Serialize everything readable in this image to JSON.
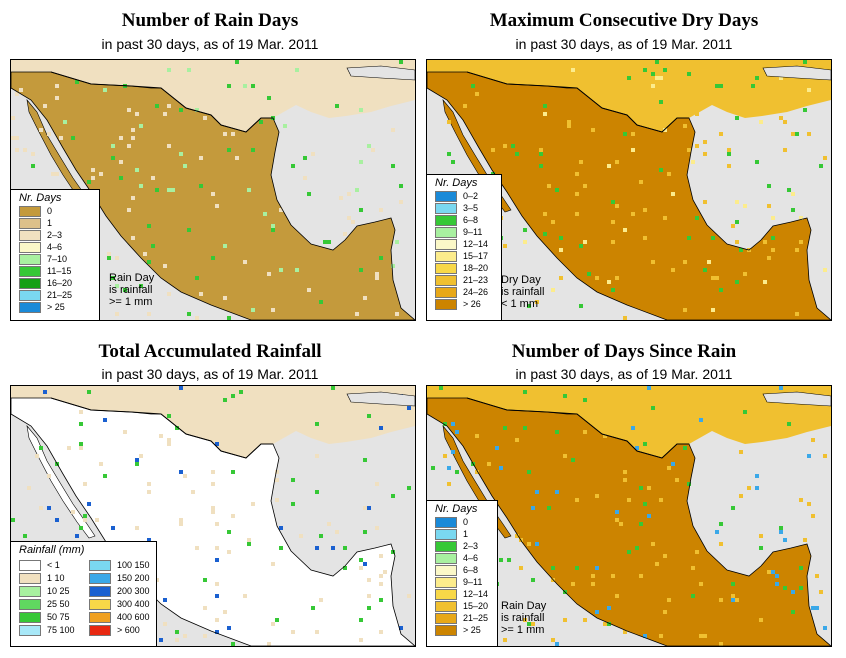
{
  "panels": [
    {
      "title": "Number of Rain Days",
      "subtitle": "in past 30 days, as of  19 Mar. 2011",
      "legend_title": "Nr. Days",
      "legend_items": [
        {
          "label": "0",
          "color": "#c49a3c"
        },
        {
          "label": "1",
          "color": "#dcc08a"
        },
        {
          "label": "2–3",
          "color": "#f0e0c0"
        },
        {
          "label": "4–6",
          "color": "#fbf8c8"
        },
        {
          "label": "7–10",
          "color": "#a8f0a0"
        },
        {
          "label": "11–15",
          "color": "#36c836"
        },
        {
          "label": "16–20",
          "color": "#14a014"
        },
        {
          "label": "21–25",
          "color": "#7ad8f0"
        },
        {
          "label": "> 25",
          "color": "#1a8ad8"
        }
      ],
      "note": [
        "Rain Day",
        "is rainfall",
        ">= 1 mm"
      ],
      "colors": {
        "land": "#c49a3c",
        "secondary": "#f0e0c0",
        "spot": "#36c836",
        "extra": "#a8f0a0"
      }
    },
    {
      "title": "Maximum Consecutive Dry Days",
      "subtitle": "in past 30 days, as of  19 Mar. 2011",
      "legend_title": "Nr. Days",
      "legend_items": [
        {
          "label": "0–2",
          "color": "#1a8ad8"
        },
        {
          "label": "3–5",
          "color": "#7ad8f0"
        },
        {
          "label": "6–8",
          "color": "#36c836"
        },
        {
          "label": "9–11",
          "color": "#a8f0a0"
        },
        {
          "label": "12–14",
          "color": "#fbf8c8"
        },
        {
          "label": "15–17",
          "color": "#fcec8c"
        },
        {
          "label": "18–20",
          "color": "#f8d848"
        },
        {
          "label": "21–23",
          "color": "#f0c030"
        },
        {
          "label": "24–26",
          "color": "#e8a818"
        },
        {
          "label": "> 26",
          "color": "#cc8400"
        }
      ],
      "note": [
        "Dry Day",
        "is rainfall",
        "< 1 mm"
      ],
      "colors": {
        "land": "#cc8400",
        "secondary": "#f0c030",
        "spot": "#36c836",
        "extra": "#fcec8c"
      }
    },
    {
      "title": "Total Accumulated Rainfall",
      "subtitle": "in past 30 days, as of  19 Mar. 2011",
      "legend_title": "Rainfall (mm)",
      "legend_items": [
        {
          "label": "< 1",
          "color": "#ffffff"
        },
        {
          "label": "1    10",
          "color": "#f0e0c0"
        },
        {
          "label": "10    25",
          "color": "#a8f0a0"
        },
        {
          "label": "25    50",
          "color": "#60d860"
        },
        {
          "label": "50    75",
          "color": "#36c836"
        },
        {
          "label": "75   100",
          "color": "#a8e8f8"
        },
        {
          "label": "100   150",
          "color": "#7ad8f0"
        },
        {
          "label": "150   200",
          "color": "#3aa8e8"
        },
        {
          "label": "200   300",
          "color": "#1a60d0"
        },
        {
          "label": "300   400",
          "color": "#f8d848"
        },
        {
          "label": "400   600",
          "color": "#f0a020"
        },
        {
          "label": "> 600",
          "color": "#e82810"
        }
      ],
      "note": [],
      "colors": {
        "land": "#ffffff",
        "secondary": "#f0e0c0",
        "spot": "#36c836",
        "extra": "#1a60d0"
      }
    },
    {
      "title": "Number of Days Since Rain",
      "subtitle": "in past 30 days, as of  19 Mar. 2011",
      "legend_title": "Nr. Days",
      "legend_items": [
        {
          "label": "0",
          "color": "#1a8ad8"
        },
        {
          "label": "1",
          "color": "#7ad8f0"
        },
        {
          "label": "2–3",
          "color": "#36c836"
        },
        {
          "label": "4–6",
          "color": "#a8f0a0"
        },
        {
          "label": "6–8",
          "color": "#fbf8c8"
        },
        {
          "label": "9–11",
          "color": "#fcec8c"
        },
        {
          "label": "12–14",
          "color": "#f8d848"
        },
        {
          "label": "15–20",
          "color": "#f0c030"
        },
        {
          "label": "21–25",
          "color": "#e8a818"
        },
        {
          "label": "> 25",
          "color": "#cc8400"
        }
      ],
      "note": [
        "Rain Day",
        "is rainfall",
        ">= 1 mm"
      ],
      "colors": {
        "land": "#cc8400",
        "secondary": "#f0c030",
        "spot": "#36c836",
        "extra": "#3aa8e8"
      }
    }
  ]
}
